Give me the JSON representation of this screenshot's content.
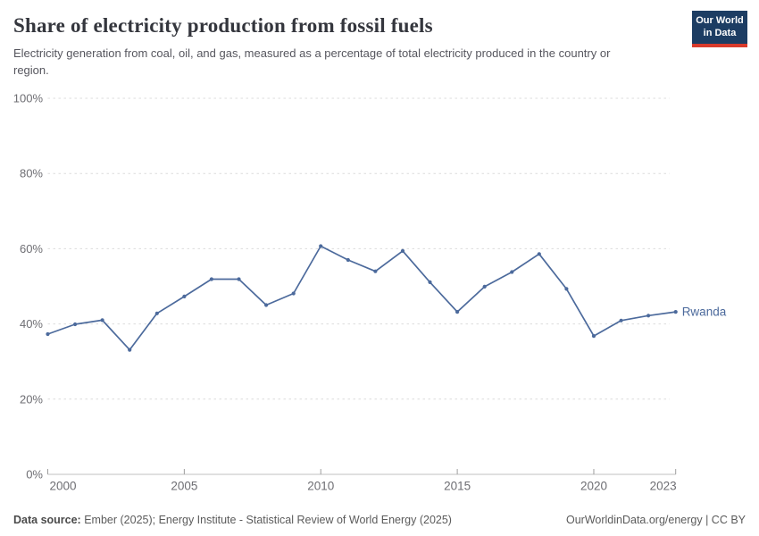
{
  "header": {
    "title": "Share of electricity production from fossil fuels",
    "subtitle": "Electricity generation from coal, oil, and gas, measured as a percentage of total electricity produced in the country or region."
  },
  "logo": {
    "line1": "Our World",
    "line2": "in Data",
    "bg_color": "#1d3d63",
    "accent_color": "#d93a2b"
  },
  "chart_data": {
    "type": "line",
    "title": "Share of electricity production from fossil fuels",
    "subtitle": "Electricity generation from coal, oil, and gas, measured as a percentage of total electricity produced in the country or region.",
    "unit": "%",
    "x": [
      2000,
      2001,
      2002,
      2003,
      2004,
      2005,
      2006,
      2007,
      2008,
      2009,
      2010,
      2011,
      2012,
      2013,
      2014,
      2015,
      2016,
      2017,
      2018,
      2019,
      2020,
      2021,
      2022,
      2023
    ],
    "series": [
      {
        "name": "Rwanda",
        "color": "#4c6a9c",
        "values": [
          37.3,
          39.9,
          41.0,
          33.1,
          42.8,
          47.3,
          51.9,
          51.9,
          45.0,
          48.1,
          60.7,
          57.0,
          54.0,
          59.4,
          51.1,
          43.2,
          49.9,
          53.8,
          58.6,
          49.3,
          36.8,
          40.9,
          42.2,
          43.2
        ]
      }
    ],
    "ylim": [
      0,
      100
    ],
    "yticks": [
      0,
      20,
      40,
      60,
      80,
      100
    ],
    "ytick_suffix": "%",
    "xticks": [
      2000,
      2005,
      2010,
      2015,
      2020,
      2023
    ],
    "grid": "horizontal-dashed",
    "legend_position": "end-of-line",
    "colors": {
      "gridline": "#dcdcdc",
      "axis": "#c0c0c0",
      "tick": "#9e9e9e",
      "tick_label": "#6e6e73"
    }
  },
  "footer": {
    "datasource_label": "Data source:",
    "datasource_text": "Ember (2025); Energy Institute - Statistical Review of World Energy (2025)",
    "link_text": "OurWorldinData.org/energy | CC BY"
  }
}
